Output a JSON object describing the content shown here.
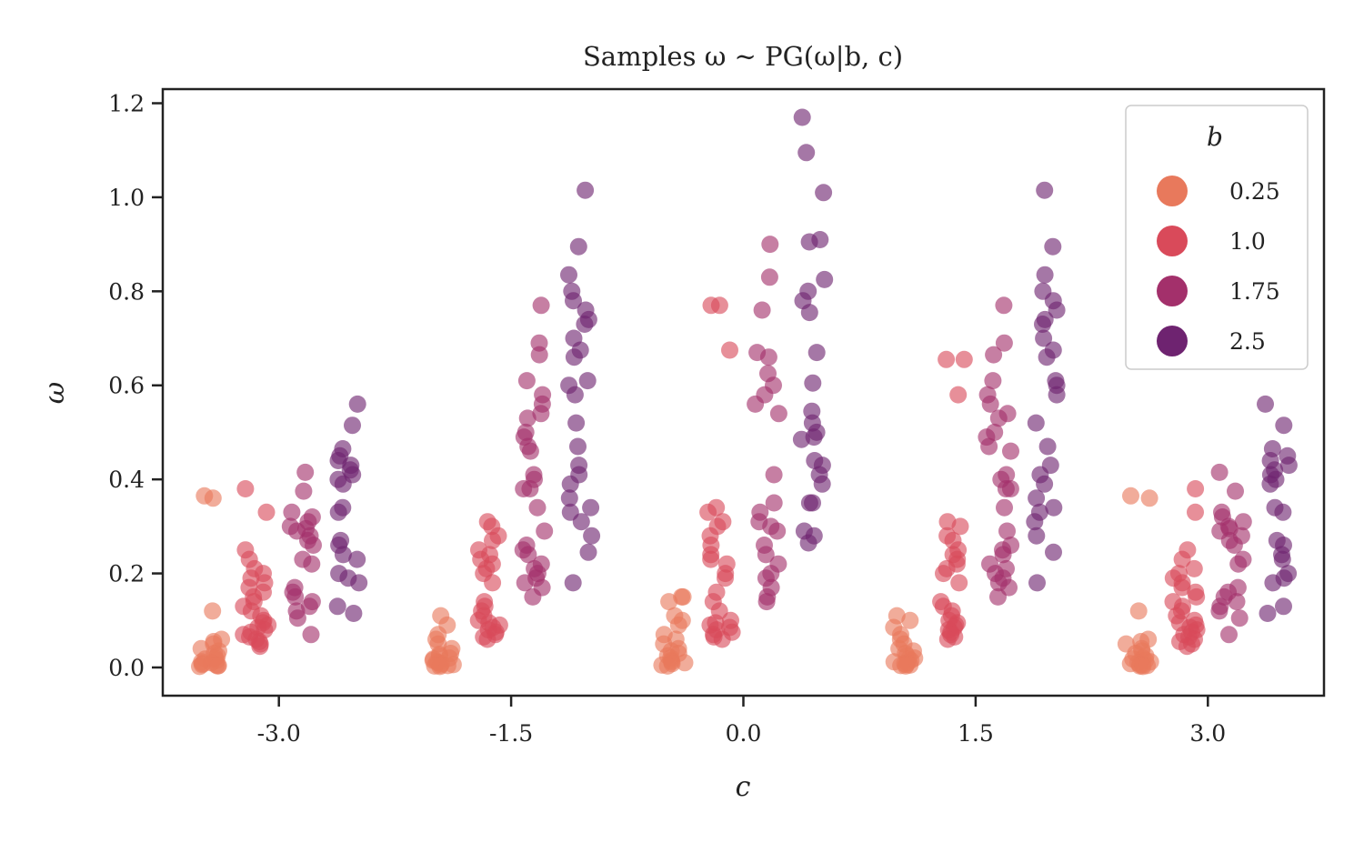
{
  "chart_data": {
    "type": "scatter",
    "title": "Samples ω ∼ PG(ω|b, c)",
    "xlabel": "c",
    "ylabel": "ω",
    "categories": [
      "-3.0",
      "-1.5",
      "0.0",
      "1.5",
      "3.0"
    ],
    "x_values": [
      -3.0,
      -1.5,
      0.0,
      1.5,
      3.0
    ],
    "xlim": [
      -3.75,
      3.75
    ],
    "ylim": [
      -0.06,
      1.23
    ],
    "yticks": [
      "0.0",
      "0.2",
      "0.4",
      "0.6",
      "0.8",
      "1.0",
      "1.2"
    ],
    "grid": false,
    "legend": {
      "title": "b",
      "position": "top-right"
    },
    "group_offsets": [
      -0.45,
      -0.15,
      0.15,
      0.45
    ],
    "series": [
      {
        "name": "0.25",
        "color": "#e8795c",
        "groups": [
          [
            0.36,
            0.365,
            0.12,
            0.06,
            0.055,
            0.05,
            0.04,
            0.035,
            0.03,
            0.025,
            0.02,
            0.018,
            0.015,
            0.012,
            0.01,
            0.008,
            0.006,
            0.005,
            0.004,
            0.003,
            0.002
          ],
          [
            0.11,
            0.09,
            0.07,
            0.06,
            0.05,
            0.04,
            0.03,
            0.028,
            0.025,
            0.02,
            0.018,
            0.015,
            0.012,
            0.01,
            0.008,
            0.006,
            0.005,
            0.004,
            0.003,
            0.002
          ],
          [
            0.15,
            0.15,
            0.14,
            0.11,
            0.1,
            0.09,
            0.07,
            0.06,
            0.05,
            0.04,
            0.035,
            0.03,
            0.025,
            0.02,
            0.015,
            0.012,
            0.01,
            0.008,
            0.005,
            0.003
          ],
          [
            0.11,
            0.1,
            0.085,
            0.07,
            0.06,
            0.05,
            0.04,
            0.035,
            0.03,
            0.025,
            0.02,
            0.018,
            0.015,
            0.012,
            0.01,
            0.008,
            0.006,
            0.005,
            0.004,
            0.003
          ],
          [
            0.36,
            0.365,
            0.12,
            0.06,
            0.055,
            0.05,
            0.04,
            0.035,
            0.03,
            0.025,
            0.02,
            0.018,
            0.015,
            0.012,
            0.01,
            0.008,
            0.006,
            0.005,
            0.004,
            0.003,
            0.002
          ]
        ]
      },
      {
        "name": "1.0",
        "color": "#d94a5a",
        "groups": [
          [
            0.38,
            0.33,
            0.25,
            0.23,
            0.21,
            0.2,
            0.19,
            0.18,
            0.17,
            0.16,
            0.15,
            0.14,
            0.13,
            0.12,
            0.11,
            0.1,
            0.095,
            0.09,
            0.085,
            0.08,
            0.075,
            0.07,
            0.065,
            0.06,
            0.055,
            0.05,
            0.045
          ],
          [
            0.31,
            0.3,
            0.28,
            0.27,
            0.25,
            0.24,
            0.23,
            0.22,
            0.21,
            0.2,
            0.18,
            0.14,
            0.13,
            0.12,
            0.11,
            0.1,
            0.095,
            0.09,
            0.085,
            0.08,
            0.075,
            0.07,
            0.065,
            0.06
          ],
          [
            0.77,
            0.77,
            0.675,
            0.34,
            0.33,
            0.31,
            0.3,
            0.28,
            0.26,
            0.24,
            0.23,
            0.22,
            0.2,
            0.19,
            0.16,
            0.14,
            0.12,
            0.1,
            0.095,
            0.09,
            0.085,
            0.08,
            0.075,
            0.07,
            0.065,
            0.06
          ],
          [
            0.655,
            0.655,
            0.58,
            0.31,
            0.3,
            0.28,
            0.27,
            0.25,
            0.24,
            0.23,
            0.22,
            0.21,
            0.2,
            0.18,
            0.14,
            0.13,
            0.12,
            0.11,
            0.1,
            0.095,
            0.09,
            0.085,
            0.08,
            0.075,
            0.07,
            0.065,
            0.06
          ],
          [
            0.38,
            0.33,
            0.25,
            0.23,
            0.21,
            0.2,
            0.19,
            0.18,
            0.17,
            0.16,
            0.15,
            0.14,
            0.13,
            0.12,
            0.11,
            0.1,
            0.095,
            0.09,
            0.085,
            0.08,
            0.075,
            0.07,
            0.065,
            0.06,
            0.055,
            0.05,
            0.045
          ]
        ]
      },
      {
        "name": "1.75",
        "color": "#a3306b",
        "groups": [
          [
            0.415,
            0.375,
            0.33,
            0.32,
            0.31,
            0.3,
            0.295,
            0.29,
            0.28,
            0.27,
            0.26,
            0.23,
            0.22,
            0.17,
            0.16,
            0.15,
            0.14,
            0.13,
            0.12,
            0.105,
            0.07
          ],
          [
            0.77,
            0.69,
            0.665,
            0.61,
            0.58,
            0.56,
            0.54,
            0.53,
            0.5,
            0.49,
            0.47,
            0.46,
            0.41,
            0.4,
            0.38,
            0.38,
            0.34,
            0.29,
            0.26,
            0.25,
            0.24,
            0.22,
            0.21,
            0.2,
            0.19,
            0.18,
            0.17,
            0.15
          ],
          [
            0.9,
            0.83,
            0.76,
            0.67,
            0.66,
            0.625,
            0.6,
            0.58,
            0.56,
            0.54,
            0.41,
            0.35,
            0.33,
            0.31,
            0.3,
            0.29,
            0.26,
            0.24,
            0.22,
            0.2,
            0.19,
            0.17,
            0.15,
            0.14
          ],
          [
            0.77,
            0.69,
            0.665,
            0.61,
            0.58,
            0.56,
            0.54,
            0.53,
            0.5,
            0.49,
            0.47,
            0.46,
            0.41,
            0.4,
            0.38,
            0.38,
            0.34,
            0.29,
            0.26,
            0.25,
            0.24,
            0.22,
            0.21,
            0.2,
            0.19,
            0.18,
            0.17,
            0.15
          ],
          [
            0.415,
            0.375,
            0.33,
            0.32,
            0.31,
            0.3,
            0.295,
            0.29,
            0.28,
            0.27,
            0.26,
            0.23,
            0.22,
            0.17,
            0.16,
            0.15,
            0.14,
            0.13,
            0.12,
            0.105,
            0.07
          ]
        ]
      },
      {
        "name": "2.5",
        "color": "#6e2370",
        "groups": [
          [
            0.56,
            0.515,
            0.465,
            0.45,
            0.44,
            0.43,
            0.42,
            0.41,
            0.4,
            0.39,
            0.34,
            0.33,
            0.27,
            0.26,
            0.24,
            0.23,
            0.2,
            0.19,
            0.18,
            0.13,
            0.115
          ],
          [
            1.015,
            0.895,
            0.835,
            0.8,
            0.78,
            0.76,
            0.74,
            0.73,
            0.7,
            0.675,
            0.66,
            0.61,
            0.6,
            0.58,
            0.52,
            0.47,
            0.43,
            0.41,
            0.39,
            0.36,
            0.34,
            0.33,
            0.31,
            0.28,
            0.245,
            0.18
          ],
          [
            1.17,
            1.095,
            1.01,
            0.91,
            0.905,
            0.825,
            0.8,
            0.78,
            0.755,
            0.67,
            0.605,
            0.545,
            0.52,
            0.5,
            0.49,
            0.485,
            0.44,
            0.43,
            0.41,
            0.39,
            0.35,
            0.35,
            0.29,
            0.28,
            0.265
          ],
          [
            1.015,
            0.895,
            0.835,
            0.8,
            0.78,
            0.76,
            0.74,
            0.73,
            0.7,
            0.675,
            0.66,
            0.61,
            0.6,
            0.58,
            0.52,
            0.47,
            0.43,
            0.41,
            0.39,
            0.36,
            0.34,
            0.33,
            0.31,
            0.28,
            0.245,
            0.18
          ],
          [
            0.56,
            0.515,
            0.465,
            0.45,
            0.44,
            0.43,
            0.42,
            0.41,
            0.4,
            0.39,
            0.34,
            0.33,
            0.27,
            0.26,
            0.24,
            0.23,
            0.2,
            0.19,
            0.18,
            0.13,
            0.115
          ]
        ]
      }
    ]
  }
}
